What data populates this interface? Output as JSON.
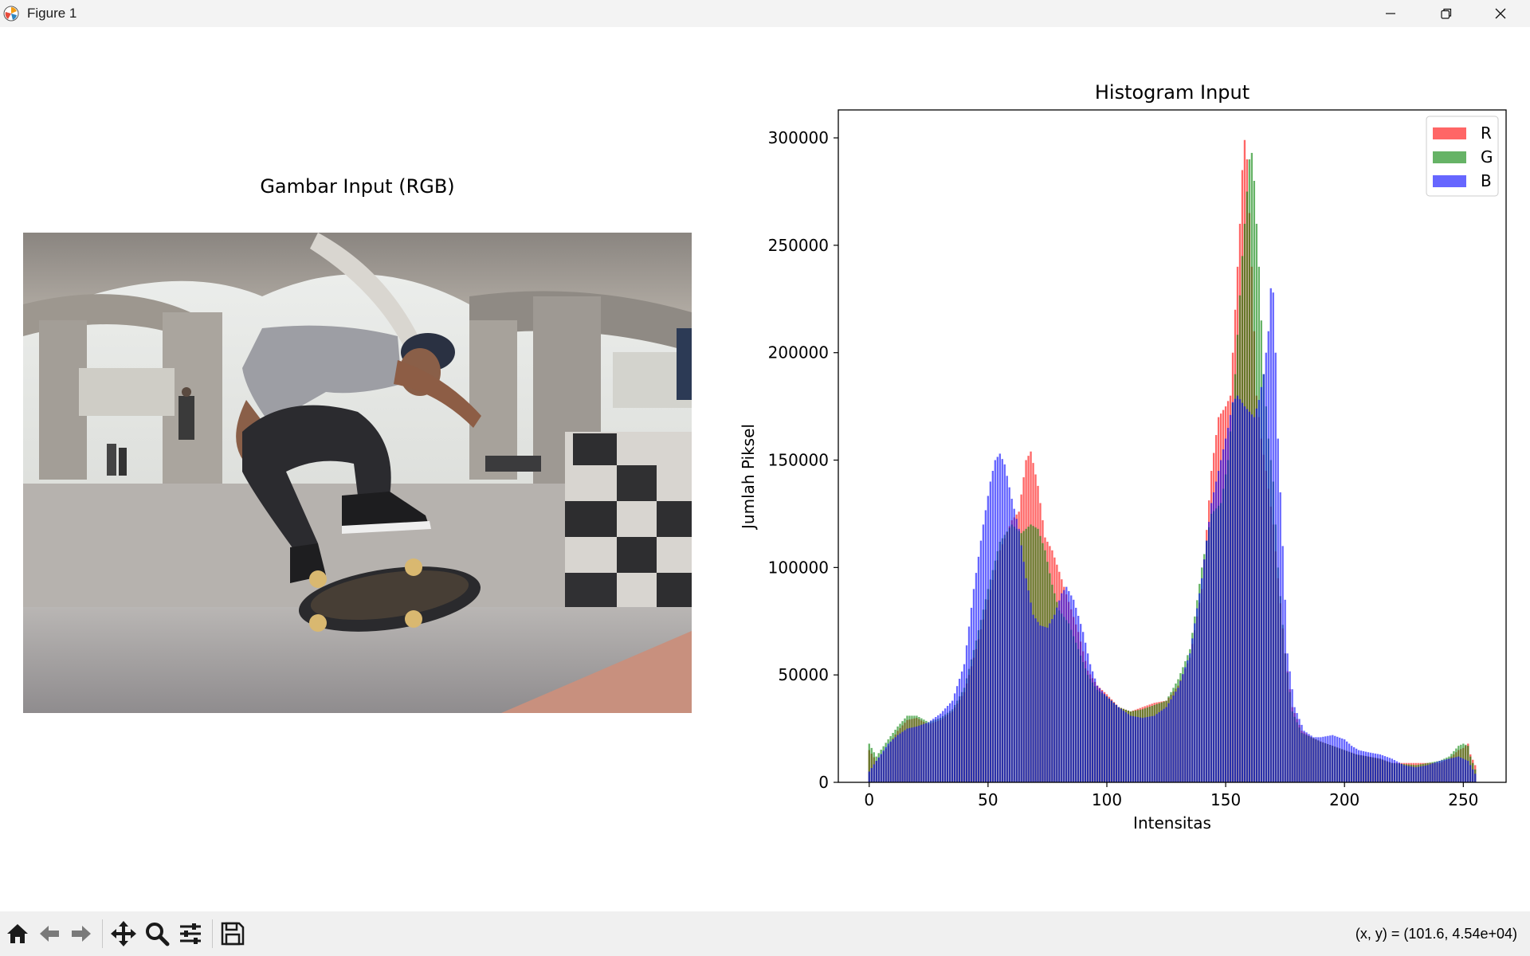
{
  "window": {
    "title": "Figure 1",
    "controls": [
      "minimize-icon",
      "restore-icon",
      "close-icon"
    ]
  },
  "left_axes": {
    "title": "Gambar Input (RGB)"
  },
  "photo": {
    "description_icon": "image"
  },
  "chart_data": {
    "type": "bar",
    "title": "Histogram Input",
    "xlabel": "Intensitas",
    "ylabel": "Jumlah Piksel",
    "xlim": [
      -13,
      268
    ],
    "ylim": [
      0,
      313000
    ],
    "xticks": [
      0,
      50,
      100,
      150,
      200,
      250
    ],
    "yticks": [
      0,
      50000,
      100000,
      150000,
      200000,
      250000,
      300000
    ],
    "legend": {
      "placement": "upper right",
      "entries": [
        "R",
        "G",
        "B"
      ]
    },
    "series": [
      {
        "name": "R",
        "color": "#ff0000",
        "alpha": 0.6,
        "anchors": [
          [
            0,
            15000
          ],
          [
            3,
            10000
          ],
          [
            8,
            17000
          ],
          [
            12,
            24000
          ],
          [
            16,
            29000
          ],
          [
            20,
            30000
          ],
          [
            25,
            27000
          ],
          [
            30,
            29000
          ],
          [
            35,
            33000
          ],
          [
            40,
            42000
          ],
          [
            45,
            62000
          ],
          [
            50,
            85000
          ],
          [
            55,
            108000
          ],
          [
            60,
            122000
          ],
          [
            63,
            126000
          ],
          [
            66,
            150000
          ],
          [
            68,
            154000
          ],
          [
            71,
            138000
          ],
          [
            74,
            114000
          ],
          [
            77,
            108000
          ],
          [
            80,
            98000
          ],
          [
            84,
            84000
          ],
          [
            88,
            70000
          ],
          [
            92,
            52000
          ],
          [
            96,
            45000
          ],
          [
            100,
            41000
          ],
          [
            105,
            35000
          ],
          [
            110,
            33000
          ],
          [
            115,
            35000
          ],
          [
            120,
            37000
          ],
          [
            125,
            38000
          ],
          [
            130,
            45000
          ],
          [
            135,
            58000
          ],
          [
            140,
            90000
          ],
          [
            144,
            145000
          ],
          [
            147,
            170000
          ],
          [
            150,
            175000
          ],
          [
            152,
            180000
          ],
          [
            154,
            220000
          ],
          [
            156,
            260000
          ],
          [
            157,
            285000
          ],
          [
            158,
            299000
          ],
          [
            159,
            290000
          ],
          [
            161,
            240000
          ],
          [
            163,
            180000
          ],
          [
            165,
            160000
          ],
          [
            167,
            145000
          ],
          [
            170,
            120000
          ],
          [
            172,
            95000
          ],
          [
            175,
            60000
          ],
          [
            178,
            35000
          ],
          [
            182,
            24000
          ],
          [
            186,
            21000
          ],
          [
            190,
            19000
          ],
          [
            195,
            17000
          ],
          [
            200,
            15000
          ],
          [
            205,
            13000
          ],
          [
            210,
            12000
          ],
          [
            215,
            11000
          ],
          [
            220,
            9000
          ],
          [
            225,
            9000
          ],
          [
            230,
            9000
          ],
          [
            235,
            9000
          ],
          [
            240,
            9000
          ],
          [
            244,
            11000
          ],
          [
            248,
            15000
          ],
          [
            250,
            16000
          ],
          [
            252,
            18000
          ],
          [
            253,
            13000
          ],
          [
            255,
            8000
          ]
        ]
      },
      {
        "name": "G",
        "color": "#008000",
        "alpha": 0.6,
        "anchors": [
          [
            0,
            18000
          ],
          [
            3,
            12000
          ],
          [
            8,
            20000
          ],
          [
            12,
            26000
          ],
          [
            16,
            31000
          ],
          [
            20,
            31000
          ],
          [
            25,
            28000
          ],
          [
            30,
            30000
          ],
          [
            35,
            34000
          ],
          [
            40,
            44000
          ],
          [
            45,
            66000
          ],
          [
            50,
            90000
          ],
          [
            55,
            112000
          ],
          [
            60,
            120000
          ],
          [
            64,
            116000
          ],
          [
            68,
            120000
          ],
          [
            71,
            118000
          ],
          [
            74,
            108000
          ],
          [
            77,
            92000
          ],
          [
            80,
            80000
          ],
          [
            84,
            74000
          ],
          [
            88,
            62000
          ],
          [
            92,
            50000
          ],
          [
            96,
            43000
          ],
          [
            100,
            40000
          ],
          [
            105,
            35000
          ],
          [
            110,
            33000
          ],
          [
            115,
            34000
          ],
          [
            120,
            36000
          ],
          [
            125,
            38000
          ],
          [
            130,
            48000
          ],
          [
            135,
            62000
          ],
          [
            140,
            100000
          ],
          [
            144,
            125000
          ],
          [
            148,
            130000
          ],
          [
            151,
            150000
          ],
          [
            154,
            190000
          ],
          [
            157,
            245000
          ],
          [
            159,
            275000
          ],
          [
            160,
            290000
          ],
          [
            161,
            293000
          ],
          [
            162,
            280000
          ],
          [
            164,
            240000
          ],
          [
            166,
            190000
          ],
          [
            168,
            160000
          ],
          [
            170,
            140000
          ],
          [
            172,
            100000
          ],
          [
            175,
            60000
          ],
          [
            178,
            33000
          ],
          [
            182,
            23000
          ],
          [
            186,
            21000
          ],
          [
            190,
            19000
          ],
          [
            195,
            17000
          ],
          [
            200,
            15000
          ],
          [
            205,
            13000
          ],
          [
            210,
            12000
          ],
          [
            215,
            11000
          ],
          [
            220,
            9000
          ],
          [
            225,
            8500
          ],
          [
            230,
            8000
          ],
          [
            235,
            9000
          ],
          [
            240,
            10000
          ],
          [
            244,
            12000
          ],
          [
            248,
            17000
          ],
          [
            250,
            18000
          ],
          [
            252,
            17000
          ],
          [
            253,
            12000
          ],
          [
            255,
            6000
          ]
        ]
      },
      {
        "name": "B",
        "color": "#0000ff",
        "alpha": 0.6,
        "anchors": [
          [
            0,
            5000
          ],
          [
            3,
            10000
          ],
          [
            8,
            18000
          ],
          [
            12,
            22000
          ],
          [
            16,
            25000
          ],
          [
            20,
            26000
          ],
          [
            25,
            28000
          ],
          [
            30,
            32000
          ],
          [
            35,
            38000
          ],
          [
            40,
            55000
          ],
          [
            44,
            90000
          ],
          [
            48,
            120000
          ],
          [
            51,
            140000
          ],
          [
            53,
            150000
          ],
          [
            55,
            153000
          ],
          [
            57,
            148000
          ],
          [
            60,
            132000
          ],
          [
            63,
            118000
          ],
          [
            66,
            95000
          ],
          [
            69,
            78000
          ],
          [
            72,
            73000
          ],
          [
            75,
            72000
          ],
          [
            78,
            78000
          ],
          [
            81,
            88000
          ],
          [
            83,
            91000
          ],
          [
            86,
            85000
          ],
          [
            90,
            70000
          ],
          [
            93,
            55000
          ],
          [
            96,
            45000
          ],
          [
            100,
            40000
          ],
          [
            105,
            35000
          ],
          [
            110,
            31000
          ],
          [
            115,
            30000
          ],
          [
            120,
            31000
          ],
          [
            125,
            35000
          ],
          [
            130,
            44000
          ],
          [
            135,
            60000
          ],
          [
            140,
            95000
          ],
          [
            144,
            130000
          ],
          [
            148,
            150000
          ],
          [
            151,
            165000
          ],
          [
            153,
            177000
          ],
          [
            155,
            180000
          ],
          [
            158,
            175000
          ],
          [
            162,
            170000
          ],
          [
            164,
            178000
          ],
          [
            166,
            190000
          ],
          [
            167,
            200000
          ],
          [
            168,
            210000
          ],
          [
            169,
            230000
          ],
          [
            170,
            228000
          ],
          [
            171,
            200000
          ],
          [
            172,
            160000
          ],
          [
            174,
            110000
          ],
          [
            176,
            60000
          ],
          [
            179,
            35000
          ],
          [
            183,
            24000
          ],
          [
            187,
            21000
          ],
          [
            190,
            21000
          ],
          [
            195,
            22000
          ],
          [
            200,
            20000
          ],
          [
            203,
            17000
          ],
          [
            206,
            15000
          ],
          [
            210,
            14000
          ],
          [
            215,
            13000
          ],
          [
            220,
            11000
          ],
          [
            225,
            8000
          ],
          [
            230,
            7000
          ],
          [
            235,
            8000
          ],
          [
            240,
            10000
          ],
          [
            244,
            11000
          ],
          [
            248,
            12000
          ],
          [
            250,
            11000
          ],
          [
            252,
            10000
          ],
          [
            253,
            8000
          ],
          [
            255,
            4000
          ]
        ]
      }
    ]
  },
  "toolbar": {
    "buttons": [
      "home-icon",
      "back-icon",
      "forward-icon",
      "pan-icon",
      "zoom-icon",
      "configure-subplots-icon",
      "save-icon"
    ],
    "coordinates": "(x, y) = (101.6, 4.54e+04)"
  }
}
